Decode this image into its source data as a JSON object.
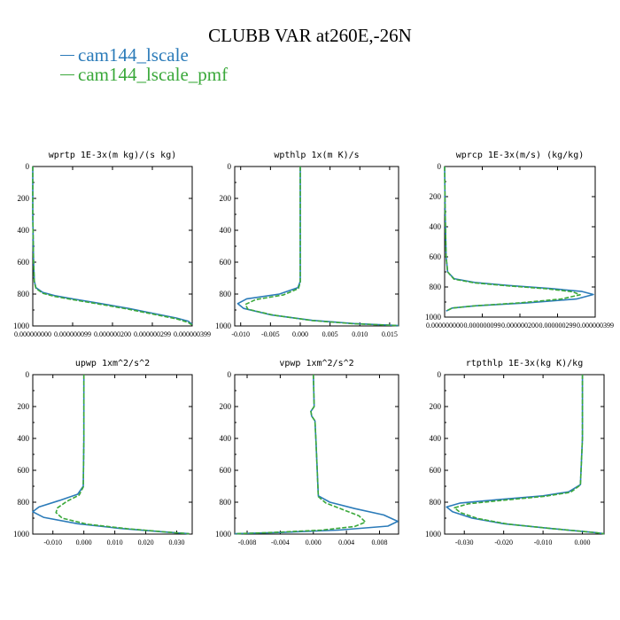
{
  "title": "CLUBB VAR at260E,-26N",
  "legend": [
    {
      "label": "cam144_lscale",
      "color": "#2b7bb9",
      "dashed": false
    },
    {
      "label": "cam144_lscale_pmf",
      "color": "#3aa83a",
      "dashed": true
    }
  ],
  "chart_data": [
    {
      "type": "line",
      "title": "wprtp  1E-3x(m kg)/(s kg)",
      "xlim": [
        0,
        4e-07
      ],
      "ylim": [
        1000,
        0
      ],
      "xticks": [
        0,
        1e-07,
        2e-07,
        3e-07,
        4e-07
      ],
      "xtick_labels": [
        "0.000000000",
        "0.000000099",
        "0.000000200",
        "0.000000299",
        "0.000000399"
      ],
      "yticks": [
        0,
        200,
        400,
        600,
        800,
        1000
      ],
      "ytick_labels": [
        "0",
        "200",
        "400",
        "600",
        "800",
        "1000"
      ],
      "series": [
        {
          "name": "cam144_lscale",
          "x": [
            0,
            0,
            2e-09,
            4e-09,
            8e-09,
            2.5e-08,
            5.5e-08,
            1e-07,
            1.6e-07,
            2.4e-07,
            3e-07,
            3.6e-07,
            3.9e-07,
            4e-07
          ],
          "y": [
            0,
            300,
            600,
            720,
            760,
            790,
            810,
            830,
            855,
            890,
            920,
            950,
            970,
            990
          ]
        },
        {
          "name": "cam144_lscale_pmf",
          "x": [
            0,
            0,
            2e-09,
            4e-09,
            8e-09,
            2.5e-08,
            5.5e-08,
            1e-07,
            1.6e-07,
            2.4e-07,
            3e-07,
            3.6e-07,
            3.9e-07,
            4e-07
          ],
          "y": [
            0,
            300,
            600,
            725,
            765,
            795,
            815,
            835,
            860,
            895,
            925,
            955,
            978,
            995
          ]
        }
      ]
    },
    {
      "type": "line",
      "title": "wpthlp  1x(m K)/s",
      "xlim": [
        -0.011,
        0.0165
      ],
      "ylim": [
        1000,
        0
      ],
      "xticks": [
        -0.01,
        -0.005,
        0,
        0.005,
        0.01,
        0.015
      ],
      "xtick_labels": [
        "-0.010",
        "-0.005",
        "0.000",
        "0.005",
        "0.010",
        "0.015"
      ],
      "yticks": [
        0,
        200,
        400,
        600,
        800,
        1000
      ],
      "ytick_labels": [
        "0",
        "200",
        "400",
        "600",
        "800",
        "1000"
      ],
      "series": [
        {
          "name": "cam144_lscale",
          "x": [
            0,
            0,
            0,
            -0.0004,
            -0.0035,
            -0.009,
            -0.0105,
            -0.0095,
            -0.005,
            0.002,
            0.009,
            0.0165
          ],
          "y": [
            0,
            400,
            720,
            760,
            800,
            830,
            860,
            890,
            930,
            965,
            985,
            998
          ]
        },
        {
          "name": "cam144_lscale_pmf",
          "x": [
            0,
            0,
            0,
            -0.0003,
            -0.0028,
            -0.0075,
            -0.0092,
            -0.0088,
            -0.0045,
            0.002,
            0.009,
            0.0165
          ],
          "y": [
            0,
            400,
            725,
            765,
            805,
            835,
            865,
            895,
            932,
            966,
            986,
            998
          ]
        }
      ]
    },
    {
      "type": "line",
      "title": "wprcp  1E-3x(m/s) (kg/kg)",
      "xlim": [
        0,
        4e-07
      ],
      "ylim": [
        1000,
        0
      ],
      "xticks": [
        0,
        1e-07,
        2e-07,
        3e-07,
        4e-07
      ],
      "xtick_labels": [
        "0.000000000",
        "0.000000099",
        "0.000000200",
        "0.000000299",
        "0.000000399"
      ],
      "yticks": [
        0,
        200,
        400,
        600,
        800,
        1000
      ],
      "ytick_labels": [
        "0",
        "200",
        "400",
        "600",
        "800",
        "1000"
      ],
      "series": [
        {
          "name": "cam144_lscale",
          "x": [
            0,
            1.5e-09,
            4e-09,
            8e-09,
            2.5e-08,
            8e-08,
            1.7e-07,
            2.8e-07,
            3.65e-07,
            3.95e-07,
            3.5e-07,
            2.2e-07,
            8e-08,
            2e-08,
            4e-09
          ],
          "y": [
            0,
            300,
            600,
            700,
            745,
            770,
            790,
            810,
            830,
            850,
            880,
            905,
            925,
            940,
            960
          ]
        },
        {
          "name": "cam144_lscale_pmf",
          "x": [
            0,
            1.5e-09,
            4e-09,
            8e-09,
            2.5e-08,
            8e-08,
            1.7e-07,
            2.7e-07,
            3.4e-07,
            3.6e-07,
            3.1e-07,
            2e-07,
            8e-08,
            2e-08,
            4e-09
          ],
          "y": [
            0,
            300,
            600,
            700,
            748,
            773,
            793,
            812,
            832,
            852,
            880,
            905,
            925,
            940,
            960
          ]
        }
      ]
    },
    {
      "type": "line",
      "title": "upwp  1xm^2/s^2",
      "xlim": [
        -0.0165,
        0.035
      ],
      "ylim": [
        1000,
        0
      ],
      "xticks": [
        -0.01,
        0,
        0.01,
        0.02,
        0.03
      ],
      "xtick_labels": [
        "-0.010",
        "0.000",
        "0.010",
        "0.020",
        "0.030"
      ],
      "yticks": [
        0,
        200,
        400,
        600,
        800,
        1000
      ],
      "ytick_labels": [
        "0",
        "200",
        "400",
        "600",
        "800",
        "1000"
      ],
      "series": [
        {
          "name": "cam144_lscale",
          "x": [
            0,
            0,
            -0.0002,
            -0.002,
            -0.008,
            -0.0145,
            -0.0165,
            -0.013,
            -0.002,
            0.012,
            0.025,
            0.034
          ],
          "y": [
            0,
            400,
            700,
            750,
            790,
            830,
            860,
            895,
            935,
            965,
            985,
            998
          ]
        },
        {
          "name": "cam144_lscale_pmf",
          "x": [
            0,
            0,
            -0.0002,
            -0.0015,
            -0.0055,
            -0.0085,
            -0.009,
            -0.007,
            0.001,
            0.014,
            0.026,
            0.034
          ],
          "y": [
            0,
            400,
            705,
            755,
            795,
            835,
            865,
            900,
            938,
            966,
            986,
            998
          ]
        }
      ]
    },
    {
      "type": "line",
      "title": "vpwp  1xm^2/s^2",
      "xlim": [
        -0.0095,
        0.0103
      ],
      "ylim": [
        1000,
        0
      ],
      "xticks": [
        -0.008,
        -0.004,
        0,
        0.004,
        0.008
      ],
      "xtick_labels": [
        "-0.008",
        "-0.004",
        "0.000",
        "0.004",
        "0.008"
      ],
      "yticks": [
        0,
        200,
        400,
        600,
        800,
        1000
      ],
      "ytick_labels": [
        "0",
        "200",
        "400",
        "600",
        "800",
        "1000"
      ],
      "series": [
        {
          "name": "cam144_lscale",
          "x": [
            0,
            0.0001,
            -0.0003,
            -0.0002,
            0.0002,
            0.0003,
            0.0006,
            0.002,
            0.005,
            0.0085,
            0.0102,
            0.009,
            0.003,
            -0.004,
            -0.0095
          ],
          "y": [
            0,
            200,
            230,
            260,
            290,
            400,
            760,
            800,
            840,
            880,
            920,
            950,
            975,
            990,
            998
          ]
        },
        {
          "name": "cam144_lscale_pmf",
          "x": [
            0,
            0.0001,
            -0.0003,
            -0.0002,
            0.0002,
            0.0003,
            0.0006,
            0.0015,
            0.0035,
            0.0055,
            0.0063,
            0.005,
            0.001,
            -0.005,
            -0.0095
          ],
          "y": [
            0,
            200,
            230,
            260,
            290,
            400,
            765,
            805,
            845,
            885,
            925,
            952,
            975,
            990,
            998
          ]
        }
      ]
    },
    {
      "type": "line",
      "title": "rtpthlp  1E-3x(kg K)/kg",
      "xlim": [
        -0.035,
        0.0055
      ],
      "ylim": [
        1000,
        0
      ],
      "xticks": [
        -0.03,
        -0.02,
        -0.01,
        0
      ],
      "xtick_labels": [
        "-0.030",
        "-0.020",
        "-0.010",
        "0.000"
      ],
      "yticks": [
        0,
        200,
        400,
        600,
        800,
        1000
      ],
      "ytick_labels": [
        "0",
        "200",
        "400",
        "600",
        "800",
        "1000"
      ],
      "series": [
        {
          "name": "cam144_lscale",
          "x": [
            0,
            0,
            -0.0005,
            -0.0035,
            -0.01,
            -0.022,
            -0.031,
            -0.0345,
            -0.033,
            -0.028,
            -0.02,
            -0.008,
            0.003,
            0.0055
          ],
          "y": [
            0,
            400,
            690,
            735,
            760,
            785,
            805,
            830,
            860,
            900,
            935,
            965,
            990,
            998
          ]
        },
        {
          "name": "cam144_lscale_pmf",
          "x": [
            0,
            0,
            -0.0005,
            -0.003,
            -0.0095,
            -0.021,
            -0.029,
            -0.0325,
            -0.031,
            -0.0265,
            -0.019,
            -0.0075,
            0.003,
            0.0055
          ],
          "y": [
            0,
            400,
            692,
            738,
            763,
            790,
            810,
            835,
            865,
            903,
            937,
            966,
            990,
            998
          ]
        }
      ]
    }
  ]
}
